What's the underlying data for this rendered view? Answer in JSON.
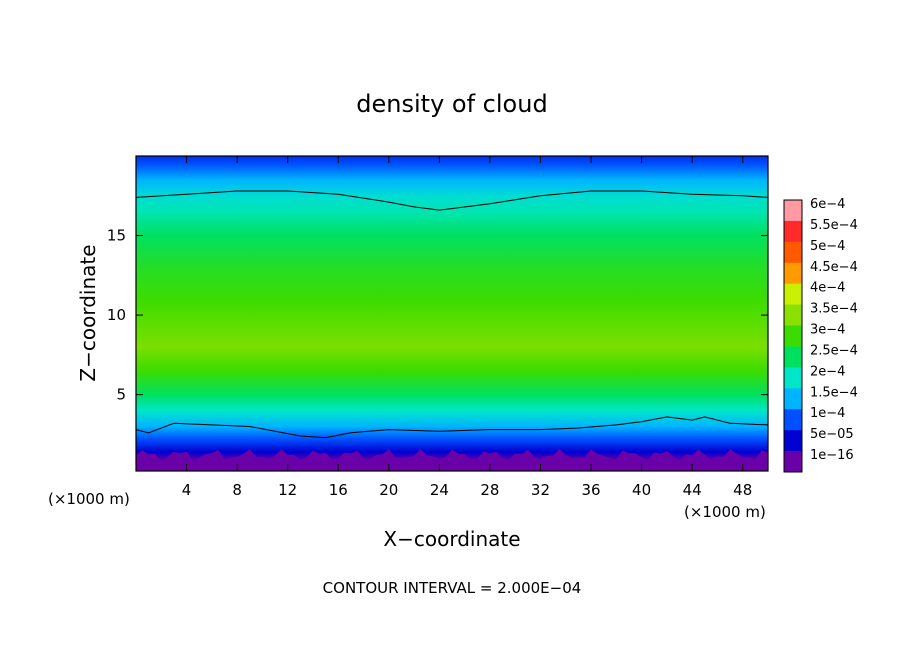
{
  "chart_data": {
    "type": "heatmap",
    "title": "density of cloud",
    "xlabel": "X−coordinate",
    "ylabel": "Z−coordinate",
    "x_unit_left": "(×1000 m)",
    "x_unit_right": "(×1000 m)",
    "xlim": [
      0,
      50
    ],
    "ylim": [
      0.2,
      20
    ],
    "x_ticks": [
      4,
      8,
      12,
      16,
      20,
      24,
      28,
      32,
      36,
      40,
      44,
      48
    ],
    "y_ticks": [
      5,
      10,
      15
    ],
    "contour_interval_text": "CONTOUR INTERVAL = 2.000E−04",
    "colorbar": {
      "labels": [
        "6e−4",
        "5.5e−4",
        "5e−4",
        "4.5e−4",
        "4e−4",
        "3.5e−4",
        "3e−4",
        "2.5e−4",
        "2e−4",
        "1.5e−4",
        "1e−4",
        "5e−05",
        "1e−16"
      ],
      "levels": [
        0.0006,
        0.00055,
        0.0005,
        0.00045,
        0.0004,
        0.00035,
        0.0003,
        0.00025,
        0.0002,
        0.00015,
        0.0001,
        5e-05,
        1e-16
      ],
      "colors": [
        "#ff9aa2",
        "#ff2a2a",
        "#ff5a00",
        "#ff9a00",
        "#c8f000",
        "#8ae000",
        "#3cdc00",
        "#00e060",
        "#00e6c8",
        "#00b4ff",
        "#0050ff",
        "#0000d0",
        "#6a00a8"
      ]
    },
    "contour_lines": [
      {
        "level": 0.0002,
        "points": [
          [
            0,
            17.4
          ],
          [
            4,
            17.6
          ],
          [
            8,
            17.8
          ],
          [
            12,
            17.8
          ],
          [
            16,
            17.6
          ],
          [
            20,
            17.1
          ],
          [
            22,
            16.8
          ],
          [
            24,
            16.6
          ],
          [
            28,
            17.0
          ],
          [
            32,
            17.5
          ],
          [
            36,
            17.8
          ],
          [
            40,
            17.8
          ],
          [
            44,
            17.6
          ],
          [
            48,
            17.5
          ],
          [
            50,
            17.4
          ]
        ]
      },
      {
        "level": 0.0002,
        "points": [
          [
            0,
            2.8
          ],
          [
            1,
            2.6
          ],
          [
            3,
            3.2
          ],
          [
            6,
            3.1
          ],
          [
            9,
            3.0
          ],
          [
            11,
            2.7
          ],
          [
            13,
            2.4
          ],
          [
            15,
            2.3
          ],
          [
            17,
            2.6
          ],
          [
            20,
            2.8
          ],
          [
            24,
            2.7
          ],
          [
            28,
            2.8
          ],
          [
            32,
            2.8
          ],
          [
            35,
            2.9
          ],
          [
            38,
            3.1
          ],
          [
            40,
            3.3
          ],
          [
            42,
            3.6
          ],
          [
            44,
            3.4
          ],
          [
            45,
            3.6
          ],
          [
            47,
            3.2
          ],
          [
            50,
            3.1
          ]
        ]
      }
    ],
    "vertical_profile": [
      {
        "z": 0.2,
        "value": 1e-16
      },
      {
        "z": 0.8,
        "value": 1e-16
      },
      {
        "z": 1.4,
        "value": 5e-05
      },
      {
        "z": 2.2,
        "value": 0.0001
      },
      {
        "z": 3.0,
        "value": 0.00015
      },
      {
        "z": 4.0,
        "value": 0.0002
      },
      {
        "z": 5.0,
        "value": 0.00025
      },
      {
        "z": 6.5,
        "value": 0.0003
      },
      {
        "z": 8.0,
        "value": 0.00034
      },
      {
        "z": 9.5,
        "value": 0.00032
      },
      {
        "z": 11.0,
        "value": 0.0003
      },
      {
        "z": 13.0,
        "value": 0.00028
      },
      {
        "z": 15.0,
        "value": 0.00025
      },
      {
        "z": 16.5,
        "value": 0.00021
      },
      {
        "z": 17.5,
        "value": 0.00019
      },
      {
        "z": 18.5,
        "value": 0.00015
      },
      {
        "z": 19.5,
        "value": 0.0001
      },
      {
        "z": 20.0,
        "value": 8e-05
      }
    ]
  }
}
